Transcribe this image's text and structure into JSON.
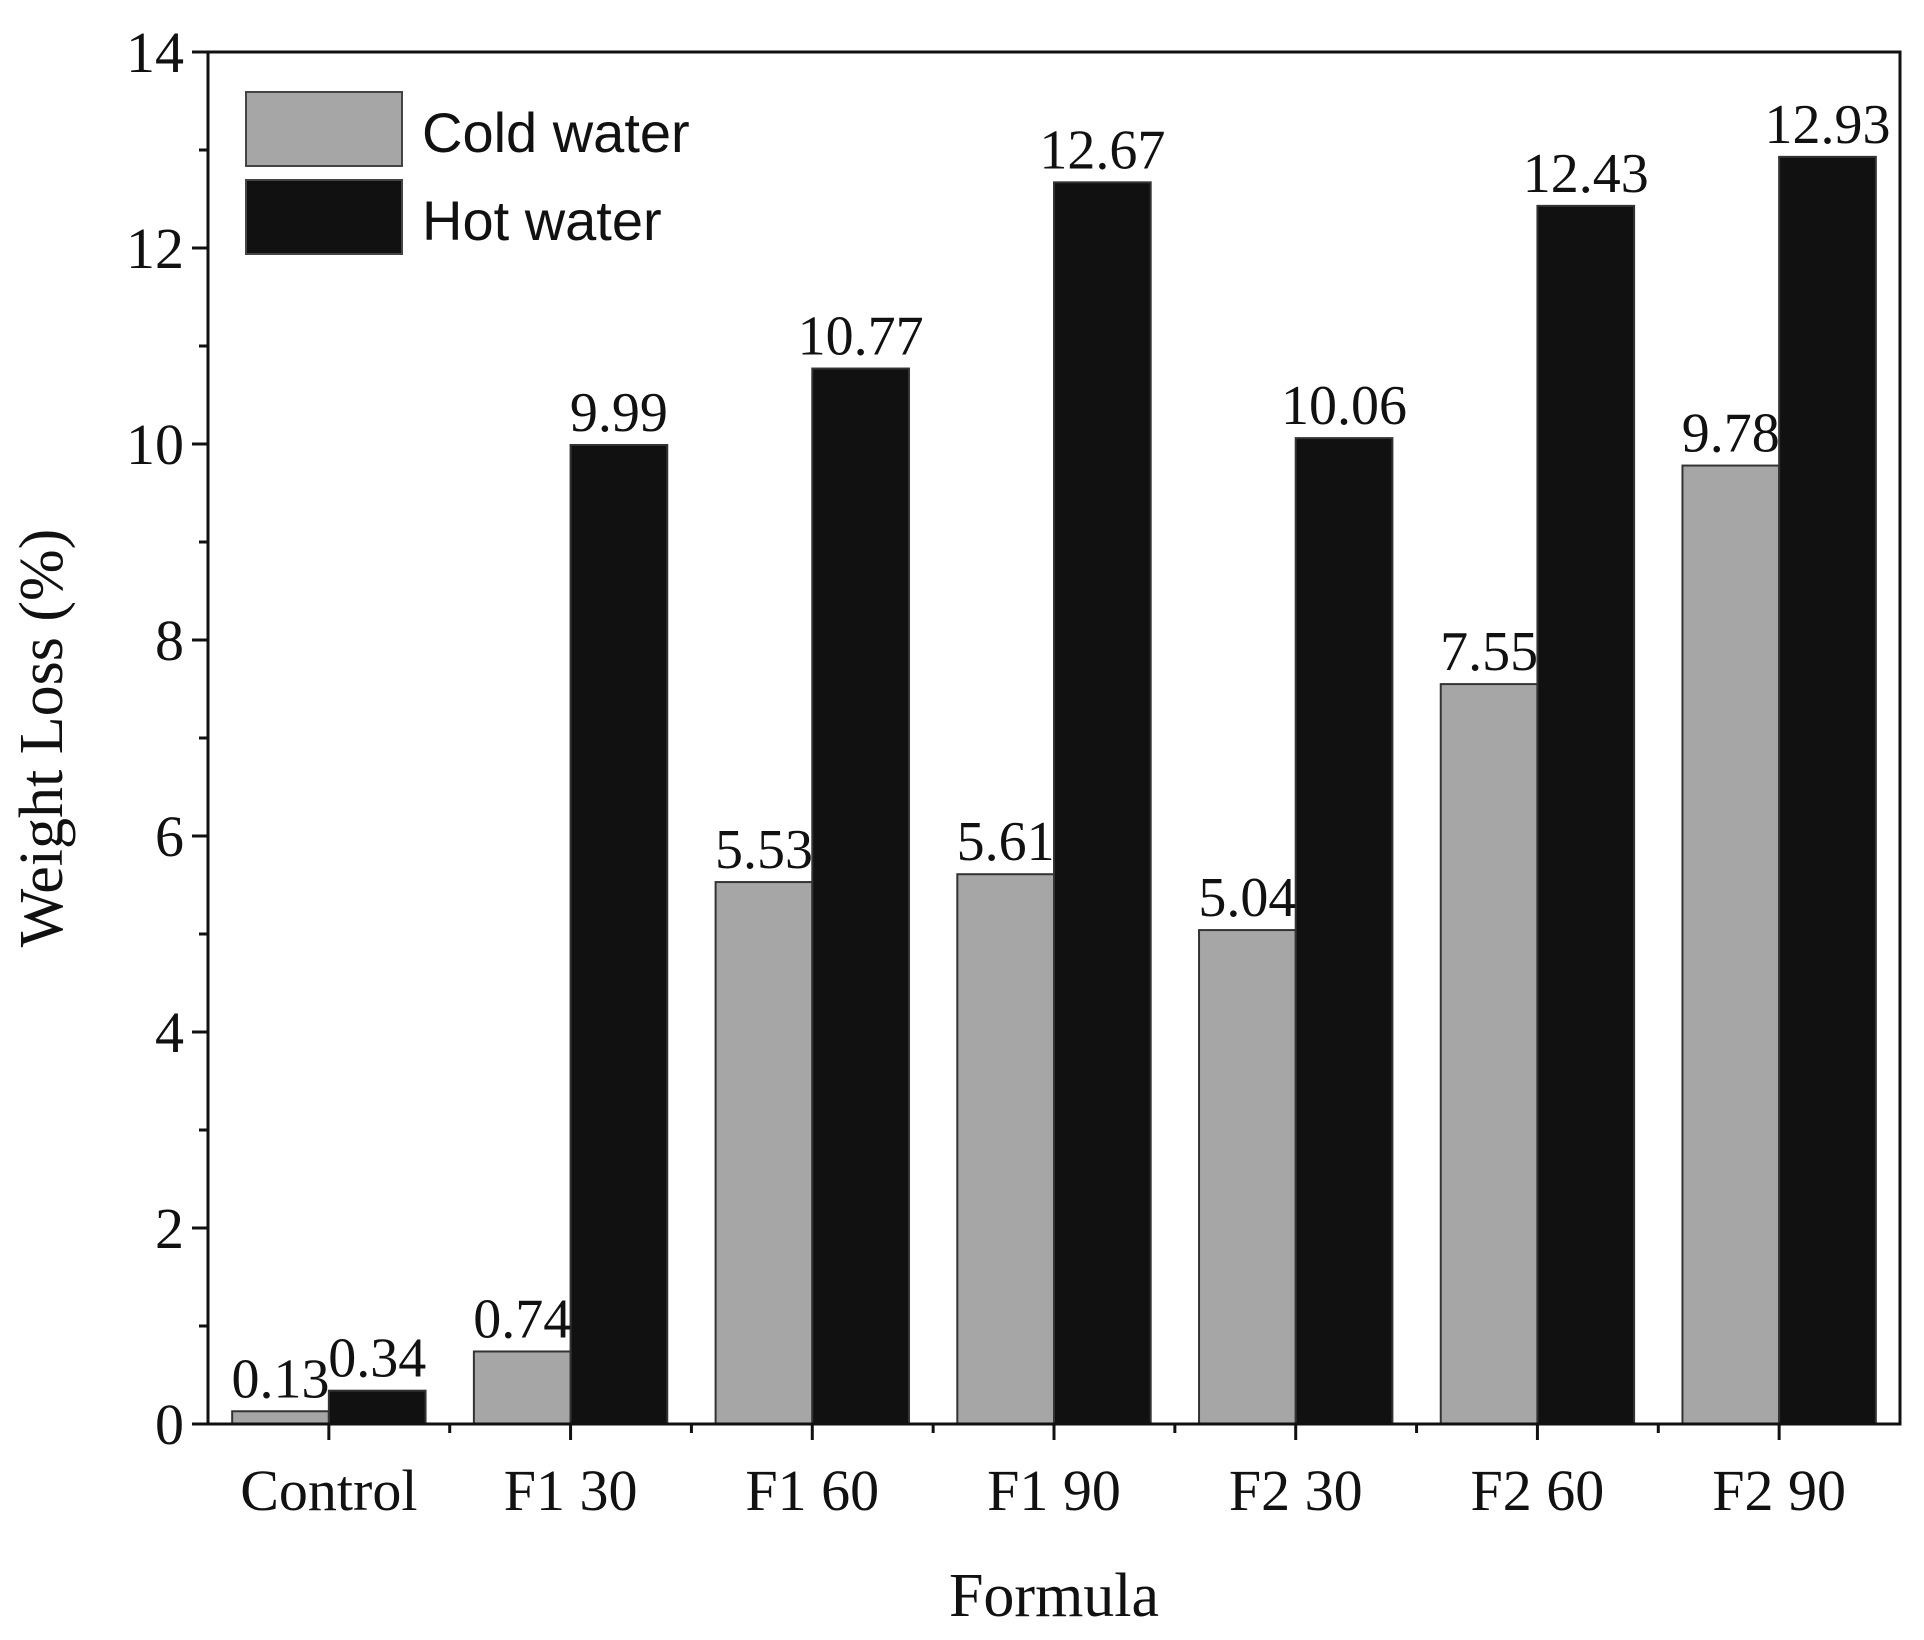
{
  "chart_data": {
    "type": "bar",
    "categories": [
      "Control",
      "F1 30",
      "F1 60",
      "F1 90",
      "F2 30",
      "F2 60",
      "F2 90"
    ],
    "series": [
      {
        "name": "Cold water",
        "color": "#a6a6a6",
        "values": [
          0.13,
          0.74,
          5.53,
          5.61,
          5.04,
          7.55,
          9.78
        ]
      },
      {
        "name": "Hot water",
        "color": "#111111",
        "values": [
          0.34,
          9.99,
          10.77,
          12.67,
          10.06,
          12.43,
          12.93
        ]
      }
    ],
    "data_labels": [
      [
        "0.13",
        "0.74",
        "5.53",
        "5.61",
        "5.04",
        "7.55",
        "9.78"
      ],
      [
        "0.34",
        "9.99",
        "10.77",
        "12.67",
        "10.06",
        "12.43",
        "12.93"
      ]
    ],
    "xlabel": "Formula",
    "ylabel": "Weight Loss (%)",
    "ylim": [
      0,
      14
    ],
    "yticks": [
      0,
      2,
      4,
      6,
      8,
      10,
      12,
      14
    ],
    "legend": "top-left",
    "grid": false
  }
}
